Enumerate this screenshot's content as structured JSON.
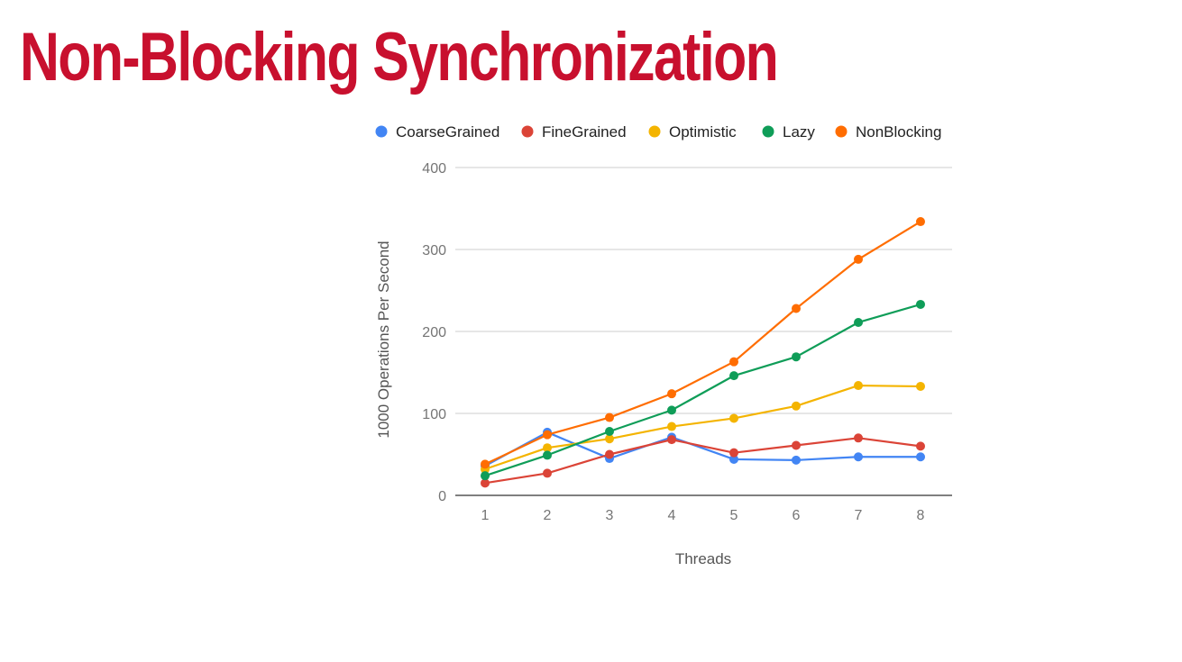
{
  "page": {
    "title": "Non-Blocking Synchronization",
    "title_color": "#c8102e"
  },
  "chart_data": {
    "type": "line",
    "title": "",
    "xlabel": "Threads",
    "ylabel": "1000 Operations Per Second",
    "x": [
      1,
      2,
      3,
      4,
      5,
      6,
      7,
      8
    ],
    "ylim": [
      0,
      400
    ],
    "yticks": [
      0,
      100,
      200,
      300,
      400
    ],
    "grid": true,
    "legend_position": "top",
    "series": [
      {
        "name": "CoarseGrained",
        "color": "#4285f4",
        "values": [
          36,
          77,
          45,
          71,
          44,
          43,
          47,
          47
        ]
      },
      {
        "name": "FineGrained",
        "color": "#db4437",
        "values": [
          15,
          27,
          50,
          68,
          52,
          61,
          70,
          60
        ]
      },
      {
        "name": "Optimistic",
        "color": "#f4b400",
        "values": [
          32,
          58,
          69,
          84,
          94,
          109,
          134,
          133
        ]
      },
      {
        "name": "Lazy",
        "color": "#0f9d58",
        "values": [
          24,
          49,
          78,
          104,
          146,
          169,
          211,
          233
        ]
      },
      {
        "name": "NonBlocking",
        "color": "#ff6d01",
        "values": [
          38,
          74,
          95,
          124,
          163,
          228,
          288,
          334
        ]
      }
    ]
  }
}
